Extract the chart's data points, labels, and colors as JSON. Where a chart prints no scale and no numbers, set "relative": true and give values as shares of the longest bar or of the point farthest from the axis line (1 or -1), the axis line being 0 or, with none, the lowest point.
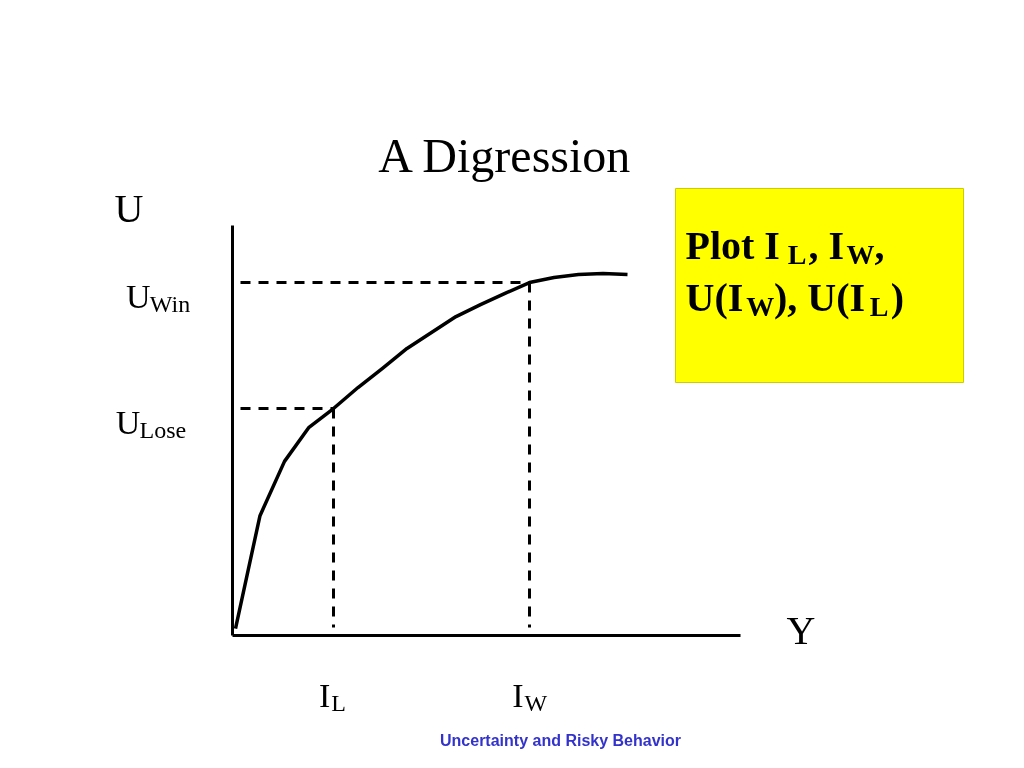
{
  "chart_data": {
    "type": "line",
    "title": "A Digression",
    "xlabel": "Y",
    "ylabel": "U",
    "relative": true,
    "line_style": "solid",
    "categories": [
      null,
      null,
      null,
      null,
      "I$_{L}$",
      null,
      null,
      null,
      null,
      null,
      null,
      null,
      "I$_{W}$",
      null,
      null,
      null,
      null
    ],
    "series": [
      {
        "color": "#000000",
        "values": [
          0.019,
          0.331,
          0.481,
          0.575,
          0.627,
          0.685,
          0.738,
          0.793,
          0.837,
          0.881,
          0.914,
          0.945,
          0.975,
          0.989,
          0.997,
          1.0,
          0.997
        ]
      }
    ],
    "ref_lines": [
      {
        "axis": "y",
        "value": 0.975,
        "label": "U$_{Win}$",
        "line_style": "dashed"
      },
      {
        "axis": "y",
        "value": 0.627,
        "label": "U$_{Lose}$",
        "line_style": "dashed"
      },
      {
        "axis": "x",
        "value": "I$_{L}$",
        "line_style": "dashed"
      },
      {
        "axis": "x",
        "value": "I$_{W}$",
        "line_style": "dashed"
      }
    ],
    "annotations": [
      "Plot I$_{L}$, I$_{W}$, U(I$_{W}$), U(I$_{L}$)",
      "Uncertainty and Risky Behavior"
    ]
  }
}
